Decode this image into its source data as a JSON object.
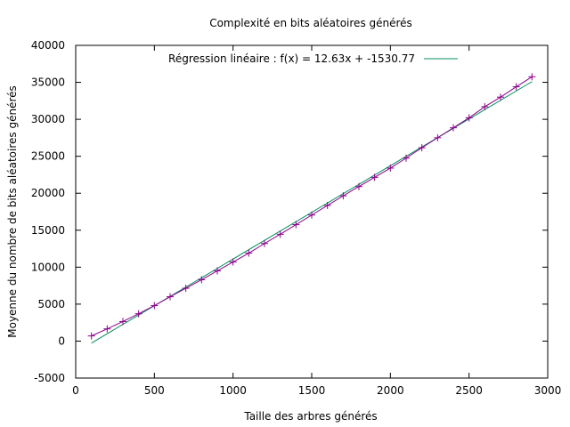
{
  "chart_data": {
    "type": "line",
    "title": "Complexité en bits aléatoires générés",
    "xlabel": "Taille des arbres générés",
    "ylabel": "Moyenne du nombre de bits aléatoires générés",
    "xlim": [
      0,
      3000
    ],
    "ylim": [
      -5000,
      40000
    ],
    "x_ticks": [
      0,
      500,
      1000,
      1500,
      2000,
      2500,
      3000
    ],
    "y_ticks": [
      -5000,
      0,
      5000,
      10000,
      15000,
      20000,
      25000,
      30000,
      35000,
      40000
    ],
    "grid": false,
    "legend_position": "top-center",
    "colors": {
      "data": "#8b008b",
      "regression": "#008f5a"
    },
    "series": [
      {
        "type": "line-points",
        "marker": "+",
        "x": [
          100,
          200,
          300,
          400,
          500,
          600,
          700,
          800,
          900,
          1000,
          1100,
          1200,
          1300,
          1400,
          1500,
          1600,
          1700,
          1800,
          1900,
          2000,
          2100,
          2200,
          2300,
          2400,
          2500,
          2600,
          2700,
          2800,
          2900
        ],
        "y": [
          700,
          1650,
          2650,
          3700,
          4800,
          6000,
          7150,
          8300,
          9500,
          10700,
          11900,
          13200,
          14450,
          15750,
          17050,
          18350,
          19650,
          20900,
          22150,
          23400,
          24750,
          26150,
          27500,
          28850,
          30200,
          31700,
          33000,
          34400,
          35750
        ]
      },
      {
        "name": "Régression linéaire : f(x) = 12.63x + -1530.77",
        "type": "line",
        "x": [
          100,
          2900
        ],
        "y": [
          -267.77,
          35096.23
        ]
      }
    ]
  }
}
